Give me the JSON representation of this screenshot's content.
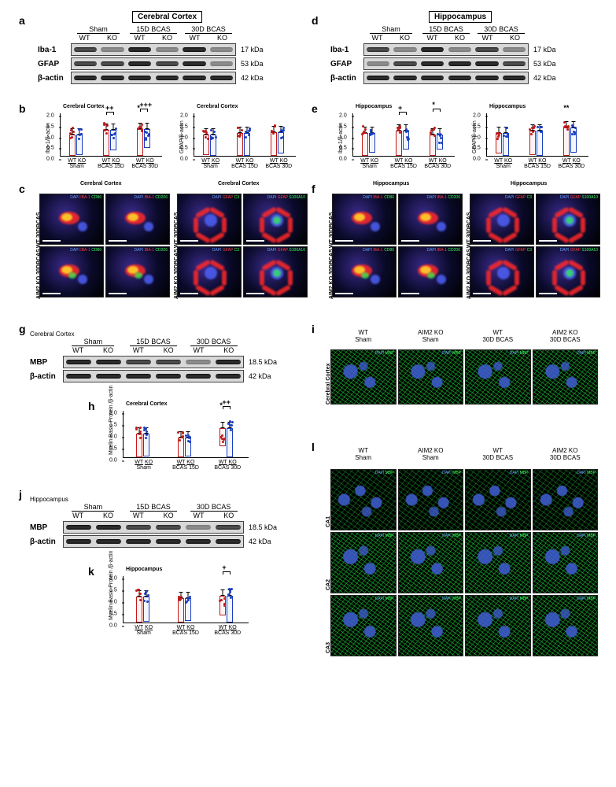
{
  "colors": {
    "wt": "#c01a1a",
    "ko": "#1a3ec0",
    "bg": "#ffffff",
    "axis": "#000000"
  },
  "font": {
    "panel_label_pt": 14,
    "axis_pt": 7,
    "blot_label_pt": 10
  },
  "regions": {
    "cortex": "Cerebral Cortex",
    "hippo": "Hippocampus"
  },
  "blot": {
    "groups": [
      "Sham",
      "15D BCAS",
      "30D BCAS"
    ],
    "genotypes": [
      "WT",
      "KO"
    ],
    "proteins": {
      "iba1": {
        "label": "Iba-1",
        "kda": "17 kDa"
      },
      "gfap": {
        "label": "GFAP",
        "kda": "53 kDa"
      },
      "actin": {
        "label": "β-actin",
        "kda": "42 kDa"
      },
      "mbp": {
        "label": "MBP",
        "kda": "18.5 kDa"
      }
    }
  },
  "charts": {
    "ylim": [
      0,
      2.0
    ],
    "yticks": [
      0,
      0.5,
      1.0,
      1.5,
      2.0
    ],
    "groups": [
      "Sham",
      "BCAS 15D",
      "BCAS 30D"
    ],
    "b_iba1_cortex": {
      "title": "Cerebral Cortex",
      "ylabel": "Iba-1/β-actin",
      "wt": [
        1.0,
        1.2,
        1.25
      ],
      "ko": [
        0.95,
        0.95,
        0.88
      ],
      "sig": [
        {
          "text": "++",
          "over": [
            2,
            3
          ]
        },
        {
          "text": "*",
          "over": [
            4
          ]
        },
        {
          "text": "+++",
          "over": [
            4,
            5
          ]
        }
      ]
    },
    "b_gfap_cortex": {
      "title": "Cerebral Cortex",
      "ylabel": "GFAP/β-actin",
      "wt": [
        0.95,
        1.05,
        1.1
      ],
      "ko": [
        1.0,
        1.05,
        0.98
      ],
      "sig": []
    },
    "e_iba1_hippo": {
      "title": "Hippocampus",
      "ylabel": "Iba-1/β-actin",
      "wt": [
        1.05,
        1.18,
        1.0
      ],
      "ko": [
        0.92,
        0.9,
        0.72
      ],
      "sig": [
        {
          "text": "+",
          "over": [
            2,
            3
          ]
        },
        {
          "text": "*",
          "over": [
            4,
            5
          ]
        }
      ]
    },
    "e_gfap_hippo": {
      "title": "Hippocampus",
      "ylabel": "GFAP/β-actin",
      "wt": [
        0.95,
        1.1,
        1.3
      ],
      "ko": [
        1.05,
        1.15,
        1.15
      ],
      "sig": [
        {
          "text": "**",
          "over": [
            4
          ]
        }
      ]
    },
    "h_mbp_cortex": {
      "title": "Cerebral Cortex",
      "ylabel": "Myelin Basic Protein\n/β-actin",
      "wt": [
        1.0,
        0.82,
        0.78
      ],
      "ko": [
        0.98,
        0.8,
        1.25
      ],
      "sig": [
        {
          "text": "*",
          "over": [
            4
          ]
        },
        {
          "text": "++",
          "over": [
            4,
            5
          ]
        }
      ]
    },
    "k_mbp_hippo": {
      "title": "Hippocampus",
      "ylabel": "Myelin Basic Protein\n/β-actin",
      "wt": [
        1.1,
        1.05,
        0.85
      ],
      "ko": [
        1.05,
        0.98,
        1.15
      ],
      "sig": [
        {
          "text": "+",
          "over": [
            4,
            5
          ]
        }
      ]
    }
  },
  "if_panels": {
    "row_labels": {
      "wt": "WT 30DBCAS",
      "ko": "AIM2 KO 30DBCAS"
    },
    "microglia_stains": [
      [
        "DAPI",
        "IBA-1",
        "CD86"
      ],
      [
        "DAPI",
        "IBA-1",
        "CD206"
      ]
    ],
    "astro_stains": [
      [
        "DAPI",
        "GFAP",
        "C3"
      ],
      [
        "DAPI",
        "GFAP",
        "S100A10"
      ]
    ],
    "stain_colors": {
      "DAPI": "#6aa0ff",
      "IBA-1": "#ff4040",
      "GFAP": "#ff4040",
      "CD86": "#40ff60",
      "CD206": "#40ff60",
      "C3": "#40ff60",
      "S100A10": "#40ff60",
      "MBP": "#40ff60"
    }
  },
  "mbp_if": {
    "col_labels": [
      "WT\nSham",
      "AIM2 KO\nSham",
      "WT\n30D BCAS",
      "AIM2 KO\n30D BCAS"
    ],
    "cortex_row": "Cerebral Cortex",
    "hippo_rows": [
      "CA1",
      "CA2",
      "CA3"
    ],
    "stain": [
      "DAPI",
      "MBP"
    ]
  },
  "panel_labels": {
    "a": "a",
    "b": "b",
    "c": "c",
    "d": "d",
    "e": "e",
    "f": "f",
    "g": "g",
    "h": "h",
    "i": "i",
    "j": "j",
    "k": "k",
    "l": "l"
  }
}
